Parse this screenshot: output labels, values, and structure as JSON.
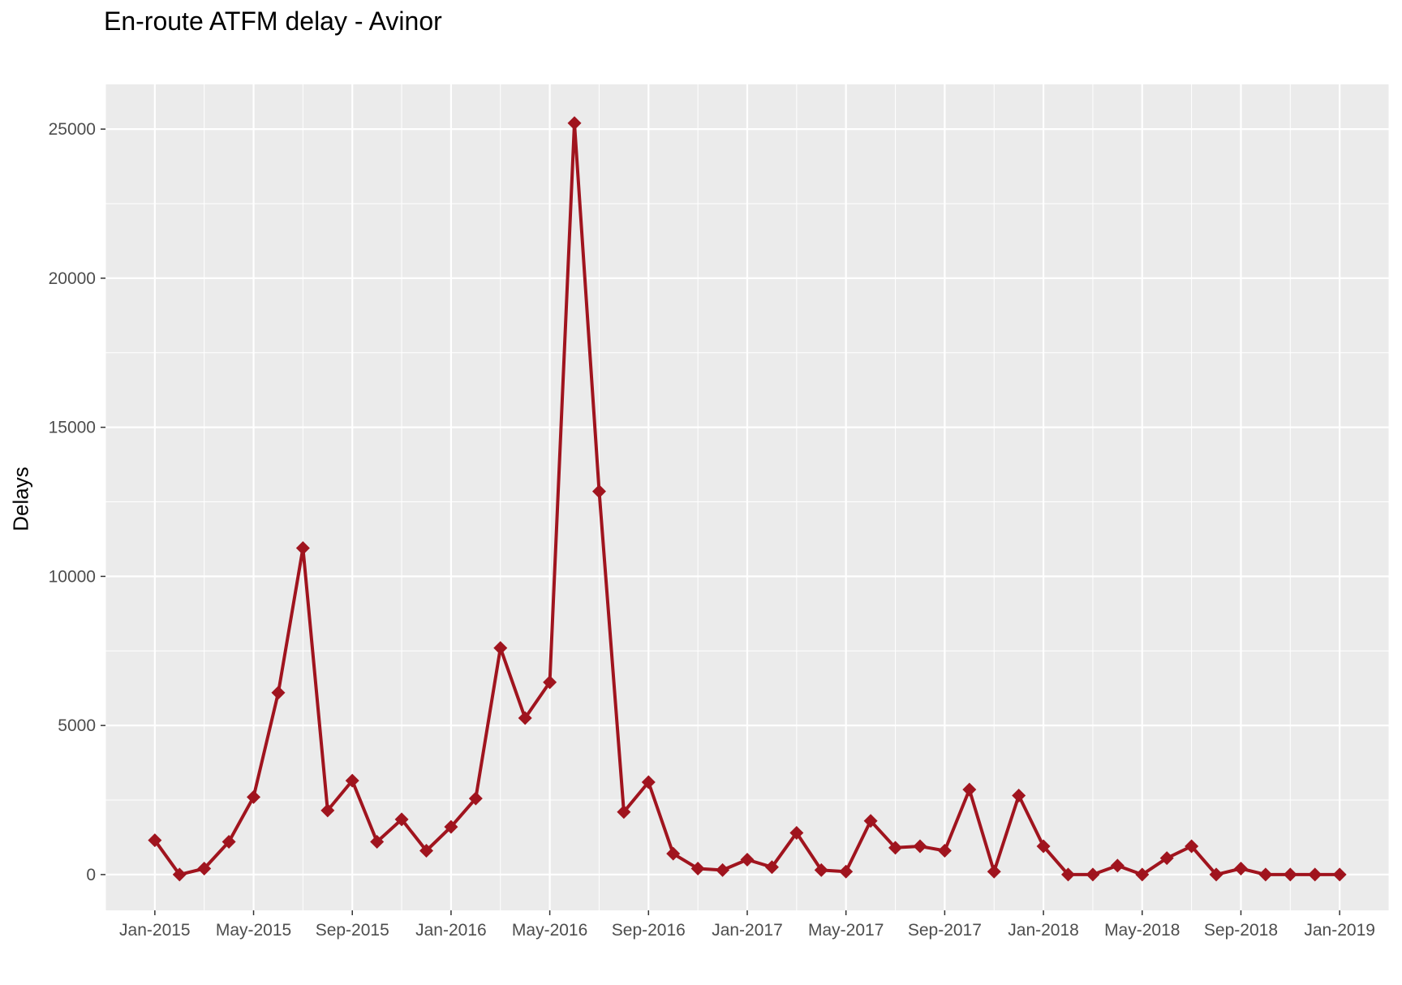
{
  "chart_data": {
    "type": "line",
    "title": "En-route ATFM delay - Avinor",
    "xlabel": "",
    "ylabel": "Delays",
    "x": [
      "2015-01",
      "2015-02",
      "2015-03",
      "2015-04",
      "2015-05",
      "2015-06",
      "2015-07",
      "2015-08",
      "2015-09",
      "2015-10",
      "2015-11",
      "2015-12",
      "2016-01",
      "2016-02",
      "2016-03",
      "2016-04",
      "2016-05",
      "2016-06",
      "2016-07",
      "2016-08",
      "2016-09",
      "2016-10",
      "2016-11",
      "2016-12",
      "2017-01",
      "2017-02",
      "2017-03",
      "2017-04",
      "2017-05",
      "2017-06",
      "2017-07",
      "2017-08",
      "2017-09",
      "2017-10",
      "2017-11",
      "2017-12",
      "2018-01",
      "2018-02",
      "2018-03",
      "2018-04",
      "2018-05",
      "2018-06",
      "2018-07",
      "2018-08",
      "2018-09",
      "2018-10",
      "2018-11",
      "2018-12",
      "2019-01"
    ],
    "series": [
      {
        "values": [
          1150,
          0,
          200,
          1100,
          2600,
          6100,
          10950,
          2150,
          3150,
          1100,
          1850,
          800,
          1600,
          2550,
          7600,
          5250,
          6450,
          25200,
          12850,
          2100,
          3100,
          700,
          200,
          150,
          500,
          250,
          1400,
          150,
          100,
          1800,
          900,
          950,
          800,
          2850,
          100,
          2650,
          950,
          0,
          0,
          300,
          0,
          550,
          950,
          0,
          200,
          0,
          0,
          0,
          0
        ]
      }
    ],
    "x_tick_labels": [
      "Jan-2015",
      "May-2015",
      "Sep-2015",
      "Jan-2016",
      "May-2016",
      "Sep-2016",
      "Jan-2017",
      "May-2017",
      "Sep-2017",
      "Jan-2018",
      "May-2018",
      "Sep-2018",
      "Jan-2019"
    ],
    "y_tick_values": [
      0,
      5000,
      10000,
      15000,
      20000,
      25000
    ],
    "y_tick_labels": [
      "0",
      "5000",
      "10000",
      "15000",
      "20000",
      "25000"
    ],
    "ylim": [
      -1200,
      26500
    ],
    "xlim": [
      "2014-11",
      "2019-03"
    ],
    "grid": true,
    "legend": "none",
    "colors": {
      "line": "#A0141E",
      "panel": "#EBEBEB",
      "grid": "#FFFFFF",
      "text": "#4D4D4D"
    }
  }
}
